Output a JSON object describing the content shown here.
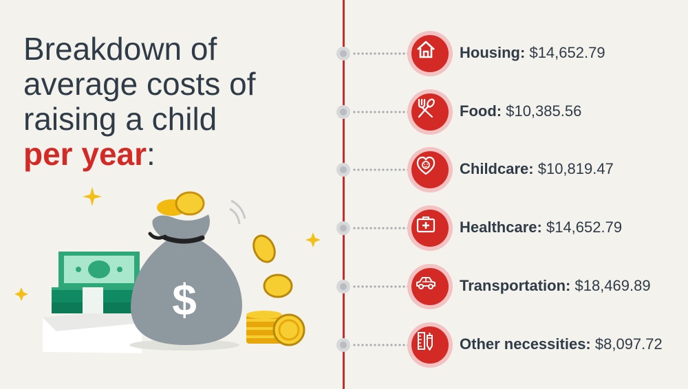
{
  "title": {
    "line1": "Breakdown of",
    "line2": "average costs of",
    "line3": "raising a child",
    "accent": "per year",
    "colon": ":"
  },
  "colors": {
    "accent": "#d42a26",
    "text": "#2f3b46",
    "background": "#f3f2ed"
  },
  "items": [
    {
      "label": "Housing:",
      "value": "$14,652.79",
      "icon": "house-icon"
    },
    {
      "label": "Food:",
      "value": "$10,385.56",
      "icon": "fork-spoon-icon"
    },
    {
      "label": "Childcare:",
      "value": "$10,819.47",
      "icon": "child-heart-icon"
    },
    {
      "label": "Healthcare:",
      "value": "$14,652.79",
      "icon": "first-aid-kit-icon"
    },
    {
      "label": "Transportation:",
      "value": "$18,469.89",
      "icon": "car-icon"
    },
    {
      "label": "Other necessities:",
      "value": "$8,097.72",
      "icon": "pencil-ruler-icon"
    }
  ],
  "illustration": {
    "bag_symbol": "$"
  }
}
